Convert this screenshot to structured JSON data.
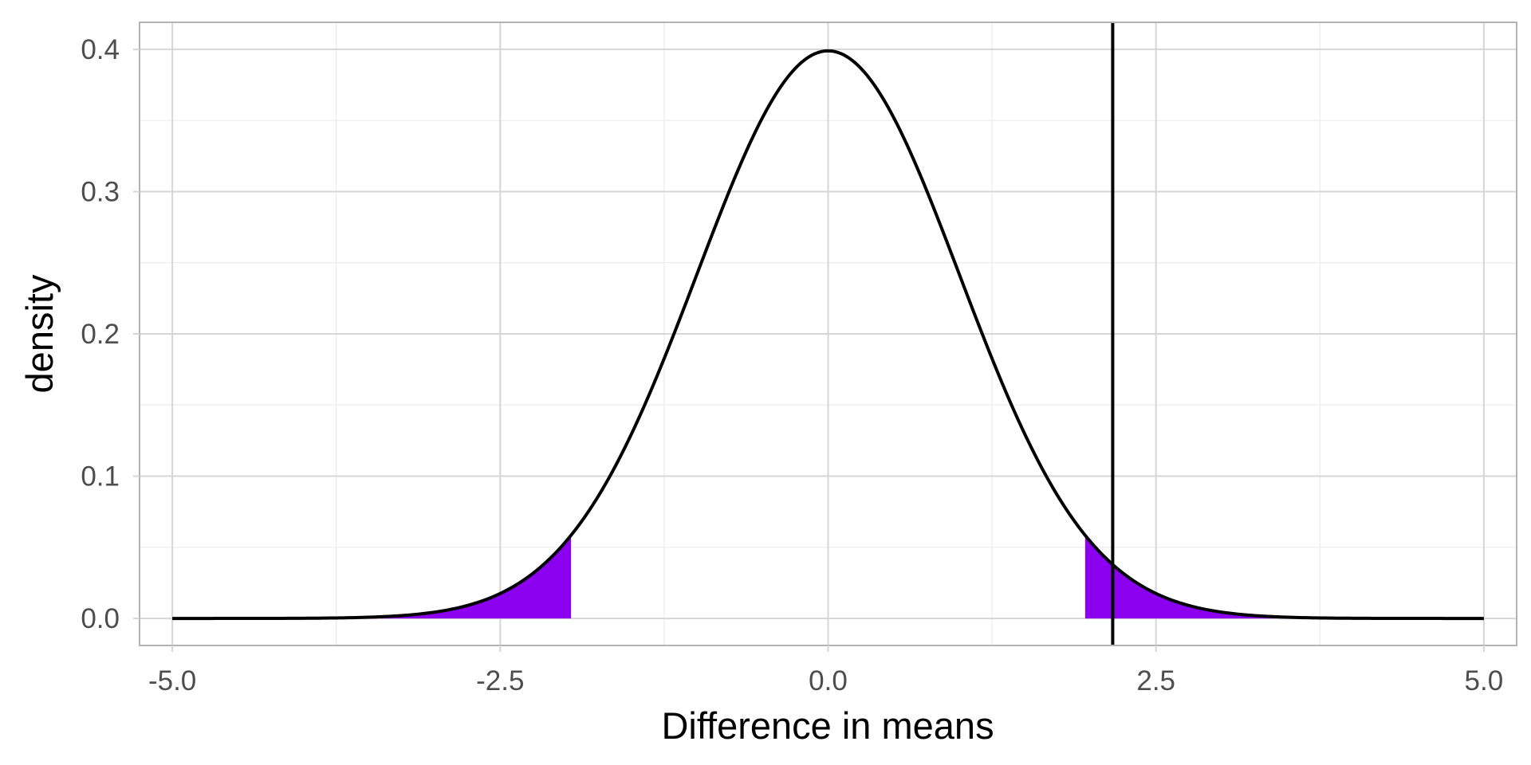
{
  "chart_data": {
    "type": "area",
    "title": "",
    "xlabel": "Difference in means",
    "ylabel": "density",
    "xlim": [
      -5.25,
      5.25
    ],
    "ylim": [
      -0.019,
      0.419
    ],
    "x_ticks": [
      -5.0,
      -2.5,
      0.0,
      2.5,
      5.0
    ],
    "x_tick_labels": [
      "-5.0",
      "-2.5",
      "0.0",
      "2.5",
      "5.0"
    ],
    "x_minor_ticks": [
      -3.75,
      -1.25,
      1.25,
      3.75
    ],
    "y_ticks": [
      0.0,
      0.1,
      0.2,
      0.3,
      0.4
    ],
    "y_tick_labels": [
      "0.0",
      "0.1",
      "0.2",
      "0.3",
      "0.4"
    ],
    "y_minor_ticks": [
      0.05,
      0.15,
      0.25,
      0.35
    ],
    "grid": true,
    "curve": {
      "distribution": "standard normal density",
      "x_range": [
        -5.0,
        5.0
      ],
      "x": [
        -5.0,
        -4.5,
        -4.0,
        -3.5,
        -3.0,
        -2.5,
        -2.0,
        -1.5,
        -1.0,
        -0.5,
        0.0,
        0.5,
        1.0,
        1.5,
        2.0,
        2.5,
        3.0,
        3.5,
        4.0,
        4.5,
        5.0
      ],
      "y": [
        0.0,
        0.0,
        0.0001,
        0.0009,
        0.0044,
        0.0175,
        0.054,
        0.1295,
        0.242,
        0.3521,
        0.3989,
        0.3521,
        0.242,
        0.1295,
        0.054,
        0.0175,
        0.0044,
        0.0009,
        0.0001,
        0.0,
        0.0
      ],
      "color": "#000000"
    },
    "shaded_regions": [
      {
        "x_from": -5.0,
        "x_to": -1.96,
        "color": "#8B00EE"
      },
      {
        "x_from": 1.96,
        "x_to": 5.0,
        "color": "#8B00EE"
      }
    ],
    "vline": {
      "x": 2.17,
      "color": "#000000"
    },
    "colors": {
      "panel_border": "#b3b3b3",
      "grid_major": "#d6d6d6",
      "grid_minor": "#ebebeb",
      "tick_text": "#4d4d4d"
    }
  }
}
